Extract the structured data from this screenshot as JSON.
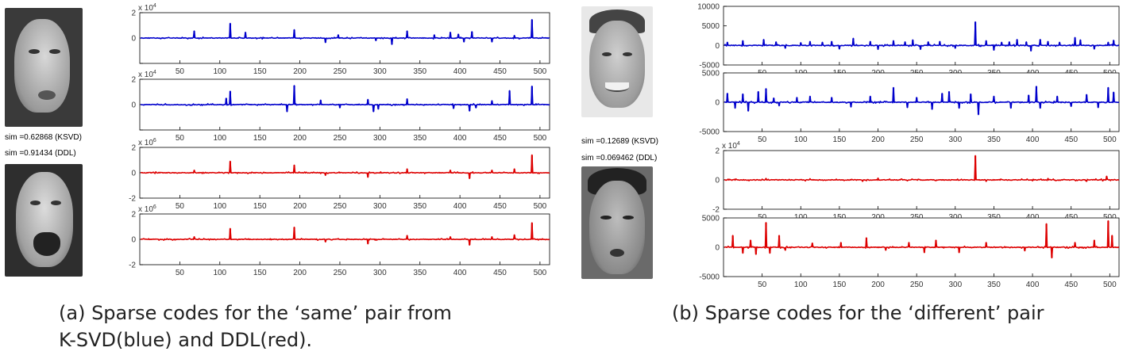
{
  "faces": [
    {
      "name": "face-a-top"
    },
    {
      "name": "face-a-bottom"
    },
    {
      "name": "face-b-top"
    },
    {
      "name": "face-b-bottom"
    }
  ],
  "panel_a": {
    "sim_ksvd": "sim =0.62868  (KSVD)",
    "sim_ddl": "sim =0.91434  (DDL)",
    "caption_line1": "(a)   Sparse codes for the ‘same’ pair from",
    "caption_line2": "K-SVD(blue) and DDL(red)."
  },
  "panel_b": {
    "sim_ksvd": "sim =0.12689  (KSVD)",
    "sim_ddl": "sim =0.069462  (DDL)",
    "caption": "(b) Sparse codes for the ‘different’ pair"
  },
  "chart_data": [
    {
      "type": "line",
      "panel": "a",
      "row": 1,
      "color": "#0000cc",
      "exponent": "x 10",
      "exp_power": "4",
      "xlim": [
        0,
        512
      ],
      "ylim": [
        -2,
        2
      ],
      "yticks": [
        -2,
        0,
        2
      ],
      "ytick_labels": [
        "",
        "0",
        "2"
      ],
      "xticks": [
        50,
        100,
        150,
        200,
        250,
        300,
        350,
        400,
        450,
        500
      ],
      "spikes": [
        [
          68,
          0.55
        ],
        [
          113,
          1.15
        ],
        [
          132,
          0.45
        ],
        [
          193,
          0.65
        ],
        [
          232,
          -0.35
        ],
        [
          248,
          0.25
        ],
        [
          295,
          -0.2
        ],
        [
          315,
          -0.5
        ],
        [
          334,
          0.55
        ],
        [
          368,
          0.25
        ],
        [
          388,
          0.45
        ],
        [
          398,
          0.3
        ],
        [
          405,
          -0.3
        ],
        [
          415,
          0.5
        ],
        [
          440,
          -0.3
        ],
        [
          468,
          0.2
        ],
        [
          490,
          1.45
        ]
      ]
    },
    {
      "type": "line",
      "panel": "a",
      "row": 2,
      "color": "#0000cc",
      "exponent": "x 10",
      "exp_power": "4",
      "xlim": [
        0,
        512
      ],
      "ylim": [
        -2,
        2
      ],
      "yticks": [
        -2,
        0,
        2
      ],
      "ytick_labels": [
        "",
        "0",
        "2"
      ],
      "xticks": [
        50,
        100,
        150,
        200,
        250,
        300,
        350,
        400,
        450,
        500
      ],
      "spikes": [
        [
          108,
          0.5
        ],
        [
          113,
          1.05
        ],
        [
          184,
          -0.55
        ],
        [
          193,
          1.5
        ],
        [
          226,
          0.35
        ],
        [
          250,
          -0.25
        ],
        [
          285,
          0.4
        ],
        [
          292,
          -0.55
        ],
        [
          298,
          -0.35
        ],
        [
          334,
          0.45
        ],
        [
          392,
          -0.3
        ],
        [
          412,
          -0.5
        ],
        [
          420,
          -0.25
        ],
        [
          440,
          0.3
        ],
        [
          462,
          1.1
        ],
        [
          490,
          1.45
        ]
      ]
    },
    {
      "type": "line",
      "panel": "a",
      "row": 3,
      "color": "#dd0000",
      "exponent": "x 10",
      "exp_power": "6",
      "xlim": [
        0,
        512
      ],
      "ylim": [
        -2,
        2
      ],
      "yticks": [
        -2,
        0,
        2
      ],
      "ytick_labels": [
        "-2",
        "0",
        "2"
      ],
      "xticks": [
        50,
        100,
        150,
        200,
        250,
        300,
        350,
        400,
        450,
        500
      ],
      "spikes": [
        [
          68,
          0.2
        ],
        [
          113,
          0.9
        ],
        [
          193,
          0.6
        ],
        [
          232,
          -0.2
        ],
        [
          285,
          -0.35
        ],
        [
          334,
          0.3
        ],
        [
          388,
          0.2
        ],
        [
          412,
          -0.45
        ],
        [
          440,
          0.2
        ],
        [
          468,
          0.3
        ],
        [
          490,
          1.4
        ]
      ]
    },
    {
      "type": "line",
      "panel": "a",
      "row": 4,
      "color": "#dd0000",
      "exponent": "x 10",
      "exp_power": "6",
      "xlim": [
        0,
        512
      ],
      "ylim": [
        -2,
        2
      ],
      "yticks": [
        -2,
        0,
        2
      ],
      "ytick_labels": [
        "-2",
        "0",
        "2"
      ],
      "xticks": [
        50,
        100,
        150,
        200,
        250,
        300,
        350,
        400,
        450,
        500
      ],
      "spikes": [
        [
          68,
          0.2
        ],
        [
          113,
          0.85
        ],
        [
          193,
          0.95
        ],
        [
          232,
          -0.2
        ],
        [
          285,
          -0.35
        ],
        [
          334,
          0.3
        ],
        [
          388,
          0.2
        ],
        [
          412,
          -0.45
        ],
        [
          440,
          0.2
        ],
        [
          468,
          0.35
        ],
        [
          490,
          1.3
        ]
      ]
    },
    {
      "type": "line",
      "panel": "b",
      "row": 1,
      "color": "#0000cc",
      "exponent": "",
      "exp_power": "",
      "xlim": [
        0,
        512
      ],
      "ylim": [
        -5000,
        10000
      ],
      "yticks": [
        -5000,
        0,
        5000,
        10000
      ],
      "ytick_labels": [
        "-5000",
        "0",
        "5000",
        "10000"
      ],
      "xticks": [
        50,
        100,
        150,
        200,
        250,
        300,
        350,
        400,
        450,
        500
      ],
      "spikes": [
        [
          5,
          800
        ],
        [
          25,
          1200
        ],
        [
          52,
          1500
        ],
        [
          68,
          900
        ],
        [
          80,
          -700
        ],
        [
          100,
          700
        ],
        [
          112,
          1000
        ],
        [
          128,
          800
        ],
        [
          140,
          1000
        ],
        [
          150,
          -900
        ],
        [
          168,
          1800
        ],
        [
          190,
          1000
        ],
        [
          200,
          -1000
        ],
        [
          220,
          1200
        ],
        [
          235,
          900
        ],
        [
          245,
          1400
        ],
        [
          255,
          -1000
        ],
        [
          265,
          900
        ],
        [
          280,
          1000
        ],
        [
          300,
          -700
        ],
        [
          326,
          6000
        ],
        [
          340,
          1200
        ],
        [
          350,
          -1200
        ],
        [
          360,
          800
        ],
        [
          370,
          900
        ],
        [
          380,
          1500
        ],
        [
          392,
          900
        ],
        [
          398,
          -1400
        ],
        [
          410,
          1500
        ],
        [
          420,
          1000
        ],
        [
          435,
          800
        ],
        [
          455,
          2000
        ],
        [
          462,
          1400
        ],
        [
          480,
          -900
        ],
        [
          498,
          800
        ],
        [
          505,
          1300
        ]
      ]
    },
    {
      "type": "line",
      "panel": "b",
      "row": 2,
      "color": "#0000cc",
      "exponent": "",
      "exp_power": "",
      "xlim": [
        0,
        512
      ],
      "ylim": [
        -5000,
        5000
      ],
      "yticks": [
        -5000,
        0,
        5000
      ],
      "ytick_labels": [
        "-5000",
        "0",
        "5000"
      ],
      "xticks": [
        50,
        100,
        150,
        200,
        250,
        300,
        350,
        400,
        450,
        500
      ],
      "spikes": [
        [
          5,
          1500
        ],
        [
          15,
          -1000
        ],
        [
          25,
          1400
        ],
        [
          32,
          -1500
        ],
        [
          45,
          1800
        ],
        [
          55,
          2300
        ],
        [
          65,
          700
        ],
        [
          72,
          -600
        ],
        [
          95,
          800
        ],
        [
          112,
          1000
        ],
        [
          140,
          800
        ],
        [
          165,
          -800
        ],
        [
          190,
          1000
        ],
        [
          220,
          2500
        ],
        [
          238,
          -900
        ],
        [
          250,
          800
        ],
        [
          270,
          -1200
        ],
        [
          283,
          1500
        ],
        [
          292,
          1800
        ],
        [
          305,
          -1000
        ],
        [
          320,
          1400
        ],
        [
          330,
          -2100
        ],
        [
          350,
          1000
        ],
        [
          372,
          -1000
        ],
        [
          395,
          1200
        ],
        [
          405,
          2700
        ],
        [
          410,
          -1000
        ],
        [
          432,
          1000
        ],
        [
          450,
          -700
        ],
        [
          470,
          1300
        ],
        [
          485,
          -900
        ],
        [
          498,
          2500
        ],
        [
          505,
          1700
        ]
      ]
    },
    {
      "type": "line",
      "panel": "b",
      "row": 3,
      "color": "#dd0000",
      "exponent": "x 10",
      "exp_power": "4",
      "xlim": [
        0,
        512
      ],
      "ylim": [
        -2,
        2
      ],
      "yticks": [
        -2,
        0,
        2
      ],
      "ytick_labels": [
        "-2",
        "0",
        "2"
      ],
      "xticks": [
        50,
        100,
        150,
        200,
        250,
        300,
        350,
        400,
        450,
        500
      ],
      "spikes": [
        [
          55,
          0.1
        ],
        [
          112,
          0.08
        ],
        [
          180,
          -0.1
        ],
        [
          200,
          0.12
        ],
        [
          326,
          1.65
        ],
        [
          340,
          -0.1
        ],
        [
          420,
          0.1
        ],
        [
          470,
          -0.1
        ],
        [
          496,
          0.25
        ]
      ]
    },
    {
      "type": "line",
      "panel": "b",
      "row": 4,
      "color": "#dd0000",
      "exponent": "",
      "exp_power": "",
      "xlim": [
        0,
        512
      ],
      "ylim": [
        -5000,
        5000
      ],
      "yticks": [
        -5000,
        0,
        5000
      ],
      "ytick_labels": [
        "-5000",
        "0",
        "5000"
      ],
      "xticks": [
        50,
        100,
        150,
        200,
        250,
        300,
        350,
        400,
        450,
        500
      ],
      "spikes": [
        [
          12,
          2000
        ],
        [
          25,
          -1000
        ],
        [
          35,
          1200
        ],
        [
          42,
          -1200
        ],
        [
          55,
          4200
        ],
        [
          60,
          -1000
        ],
        [
          72,
          2000
        ],
        [
          80,
          -500
        ],
        [
          115,
          700
        ],
        [
          152,
          800
        ],
        [
          185,
          1600
        ],
        [
          210,
          -500
        ],
        [
          240,
          800
        ],
        [
          260,
          -900
        ],
        [
          275,
          1200
        ],
        [
          305,
          -900
        ],
        [
          340,
          800
        ],
        [
          390,
          -600
        ],
        [
          418,
          4000
        ],
        [
          425,
          -1800
        ],
        [
          455,
          800
        ],
        [
          480,
          1200
        ],
        [
          498,
          4500
        ],
        [
          503,
          2000
        ]
      ]
    }
  ]
}
